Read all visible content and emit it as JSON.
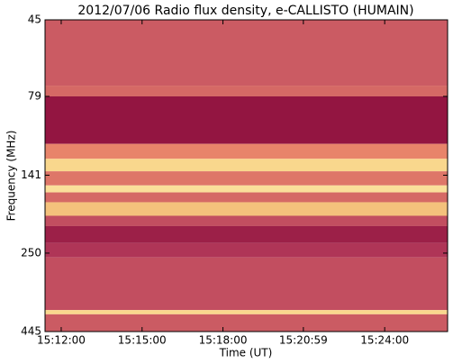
{
  "chart_data": {
    "type": "spectrogram",
    "title": "2012/07/06  Radio flux density, e-CALLISTO (HUMAIN)",
    "xlabel": "Time (UT)",
    "ylabel": "Frequency (MHz)",
    "xlim": [
      54684,
      55580
    ],
    "xticks": [
      {
        "value": 54720,
        "label": "15:12:00"
      },
      {
        "value": 54900,
        "label": "15:15:00"
      },
      {
        "value": 55080,
        "label": "15:18:00"
      },
      {
        "value": 55259,
        "label": "15:20:59"
      },
      {
        "value": 55440,
        "label": "15:24:00"
      }
    ],
    "ylim": [
      445,
      45
    ],
    "yticks": [
      45,
      79,
      141,
      250,
      445
    ],
    "log_y": true,
    "freq_edges": [
      45,
      73,
      79,
      112,
      125,
      137,
      152,
      160,
      172,
      190,
      205,
      232,
      258,
      380,
      392,
      445
    ],
    "intensity": [
      0.35,
      0.4,
      0.05,
      0.5,
      0.8,
      0.45,
      0.85,
      0.4,
      0.7,
      0.3,
      0.1,
      0.2,
      0.3,
      0.8,
      0.35
    ],
    "colormap": [
      "#8a0a3a",
      "#b8405e",
      "#e8846a",
      "#f7d080",
      "#fff5c0"
    ]
  }
}
